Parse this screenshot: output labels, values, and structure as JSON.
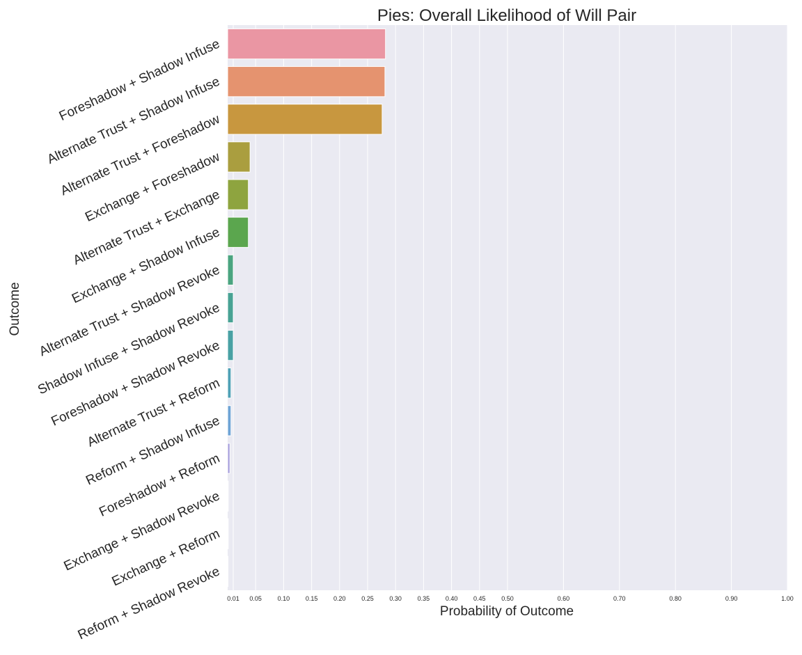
{
  "chart_data": {
    "type": "bar",
    "orientation": "horizontal",
    "title": "Pies: Overall Likelihood of Will Pair",
    "xlabel": "Probability of Outcome",
    "ylabel": "Outcome",
    "xlim": [
      0,
      1.0
    ],
    "xticks": [
      0.01,
      0.05,
      0.1,
      0.15,
      0.2,
      0.25,
      0.3,
      0.35,
      0.4,
      0.45,
      0.5,
      0.6,
      0.7,
      0.8,
      0.9,
      1.0
    ],
    "xtick_labels": [
      "0.01",
      "0.05",
      "0.10",
      "0.15",
      "0.20",
      "0.25",
      "0.30",
      "0.35",
      "0.40",
      "0.45",
      "0.50",
      "0.60",
      "0.70",
      "0.80",
      "0.90",
      "1.00"
    ],
    "grid": true,
    "legend": "none",
    "categories": [
      "Foreshadow + Shadow Infuse",
      "Alternate Trust + Shadow Infuse",
      "Alternate Trust + Foreshadow",
      "Exchange + Foreshadow",
      "Alternate Trust + Exchange",
      "Exchange + Shadow Infuse",
      "Alternate Trust + Shadow Revoke",
      "Shadow Infuse + Shadow Revoke",
      "Foreshadow + Shadow Revoke",
      "Alternate Trust + Reform",
      "Reform + Shadow Infuse",
      "Foreshadow + Reform",
      "Exchange + Shadow Revoke",
      "Exchange + Reform",
      "Reform + Shadow Revoke"
    ],
    "values": [
      0.282,
      0.281,
      0.276,
      0.04,
      0.037,
      0.037,
      0.01,
      0.01,
      0.01,
      0.006,
      0.006,
      0.004,
      0.001,
      0.001,
      0.0005
    ],
    "colors": [
      "#ea96a3",
      "#e5936f",
      "#c8973f",
      "#aa9e3f",
      "#8ea43f",
      "#5ba64e",
      "#4aa480",
      "#48a294",
      "#49a1a4",
      "#4ea0b5",
      "#6da3d5",
      "#a59ddb",
      "#d794d8",
      "#e48ebf",
      "#e990ad"
    ]
  }
}
